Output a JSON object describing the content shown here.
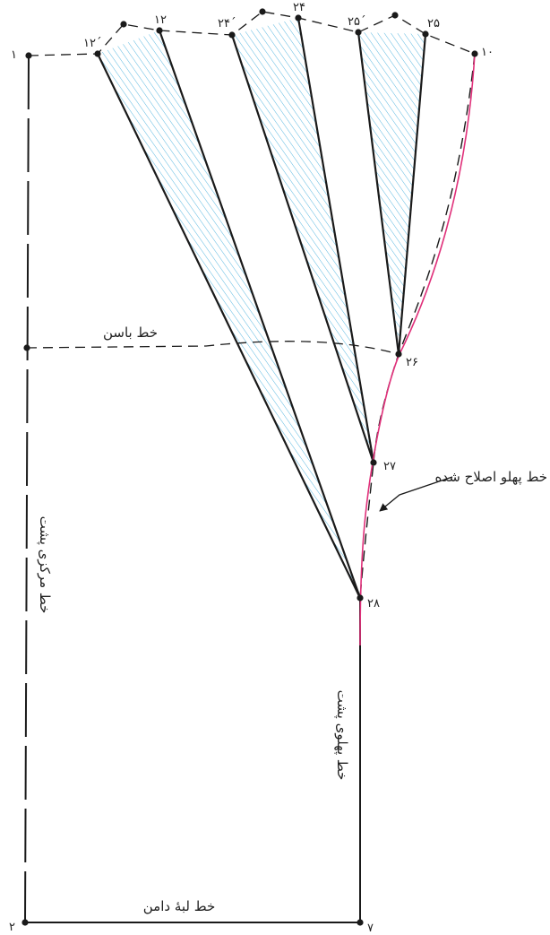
{
  "diagram": {
    "line_labels": {
      "hip_line": "خط باسن",
      "corrected_side_line": "خط پهلو اصلاح شده",
      "center_back_line": "خط مرکزی پشت",
      "back_side_line": "خط پهلوی پشت",
      "hem_line": "خط لبهٔ دامن"
    },
    "point_labels": {
      "p1": "۱",
      "p2": "۲",
      "p7": "۷",
      "p10": "۱۰",
      "p12": "۱۲",
      "p12_prime": "۱۲´",
      "p24": "۲۴",
      "p24_prime": "۲۴´",
      "p25": "۲۵",
      "p25_prime": "۲۵´",
      "p26": "۲۶",
      "p27": "۲۷",
      "p28": "۲۸"
    },
    "colors": {
      "outline": "#1a1a1a",
      "hatch": "#5bb8e0",
      "corrected_side_line": "#e0307a",
      "background": "#ffffff"
    }
  }
}
